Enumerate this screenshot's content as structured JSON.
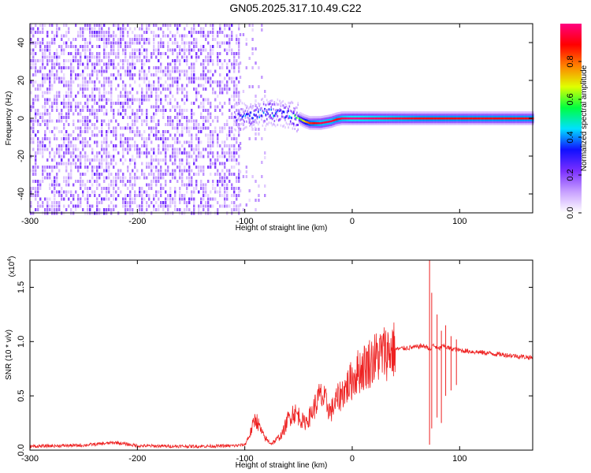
{
  "page": {
    "title": "GN05.2025.317.10.49.C22"
  },
  "chart_data": [
    {
      "type": "heatmap",
      "xlabel": "Height of straight line (km)",
      "ylabel": "Frequency (Hz)",
      "xlim": [
        -300,
        168
      ],
      "ylim": [
        -50,
        50
      ],
      "x_ticks": [
        -300,
        -200,
        -100,
        0,
        100
      ],
      "y_ticks": [
        -40,
        -20,
        0,
        20,
        40
      ],
      "colorbar": {
        "label": "Normalized spectral amplitude",
        "range": [
          0.0,
          1.0
        ],
        "ticks": [
          "0.0",
          "0.2",
          "0.4",
          "0.6",
          "0.8"
        ],
        "colors": [
          "#ffffff",
          "#c8a0ff",
          "#7a2fff",
          "#1010ff",
          "#00e0ff",
          "#00ff40",
          "#e0ff00",
          "#ff8000",
          "#ff0000",
          "#ff0080"
        ]
      },
      "noise_region": {
        "x_range": [
          -300,
          -105
        ],
        "amplitude": 0.15
      },
      "scatter_region": {
        "x_range": [
          -105,
          -80
        ],
        "amplitude": 0.1
      },
      "ridge": [
        {
          "x": -110,
          "y": 0.5,
          "amp": 0.3
        },
        {
          "x": -100,
          "y": 1.0,
          "amp": 0.35
        },
        {
          "x": -90,
          "y": 2.0,
          "amp": 0.35
        },
        {
          "x": -80,
          "y": 3.5,
          "amp": 0.4
        },
        {
          "x": -70,
          "y": 3.0,
          "amp": 0.4
        },
        {
          "x": -60,
          "y": 2.0,
          "amp": 0.4
        },
        {
          "x": -50,
          "y": 0.0,
          "amp": 0.55
        },
        {
          "x": -45,
          "y": -1.5,
          "amp": 0.7
        },
        {
          "x": -40,
          "y": -2.5,
          "amp": 0.85
        },
        {
          "x": -30,
          "y": -2.5,
          "amp": 0.95
        },
        {
          "x": -20,
          "y": -1.5,
          "amp": 0.95
        },
        {
          "x": -15,
          "y": -0.5,
          "amp": 0.9
        },
        {
          "x": -10,
          "y": 0.0,
          "amp": 0.95
        },
        {
          "x": 0,
          "y": 0.0,
          "amp": 1.0
        },
        {
          "x": 65,
          "y": 0.0,
          "amp": 0.9
        },
        {
          "x": 168,
          "y": 0.0,
          "amp": 0.9
        }
      ]
    },
    {
      "type": "line",
      "xlabel": "Height of straight line (km)",
      "ylabel": "SNR (10 * v/v)",
      "y_multiplier": "(x10",
      "y_multiplier_exp": "4",
      "y_multiplier_close": ")",
      "xlim": [
        -300,
        168
      ],
      "ylim": [
        0,
        17500
      ],
      "x_ticks": [
        -300,
        -200,
        -100,
        0,
        100
      ],
      "y_ticks": [
        0,
        5000,
        10000,
        15000
      ],
      "y_tick_labels": [
        "0.0",
        "0.5",
        "1.0",
        "1.5"
      ],
      "color": "#ee2222",
      "series": [
        {
          "x": [
            -300,
            -250,
            -220,
            -200,
            -150,
            -110,
            -100,
            -95,
            -90,
            -85,
            -82,
            -78,
            -75,
            -70,
            -65,
            -60,
            -55,
            -50,
            -45,
            -40,
            -35,
            -30,
            -25,
            -20,
            -15,
            -10,
            -5,
            0,
            5,
            10,
            15,
            20,
            25,
            30,
            40,
            50,
            60,
            65,
            70,
            73,
            75,
            78,
            80,
            85,
            90,
            95,
            100,
            110,
            120,
            130,
            140,
            150,
            160,
            168
          ],
          "y": [
            350,
            450,
            700,
            400,
            350,
            400,
            500,
            1500,
            3000,
            1800,
            1200,
            800,
            600,
            1000,
            1500,
            2800,
            3500,
            3200,
            2500,
            3000,
            4000,
            5000,
            4500,
            3500,
            4500,
            5200,
            5800,
            6500,
            7200,
            7600,
            8000,
            8400,
            8700,
            9000,
            9300,
            9400,
            9500,
            9600,
            9500,
            9200,
            9700,
            9500,
            9300,
            9600,
            9400,
            9300,
            9200,
            9100,
            9000,
            8900,
            8800,
            8700,
            8600,
            8500
          ]
        }
      ],
      "spikes": [
        {
          "x": 72,
          "ymax": 17500,
          "ymin": 500
        },
        {
          "x": 74,
          "ymax": 14500,
          "ymin": 2000
        },
        {
          "x": 79,
          "ymax": 12500,
          "ymin": 3000
        },
        {
          "x": 83,
          "ymax": 11000,
          "ymin": 2500
        },
        {
          "x": 87,
          "ymax": 11500,
          "ymin": 5000
        },
        {
          "x": 92,
          "ymax": 10500,
          "ymin": 5500
        },
        {
          "x": 97,
          "ymax": 10200,
          "ymin": 6000
        }
      ]
    }
  ]
}
